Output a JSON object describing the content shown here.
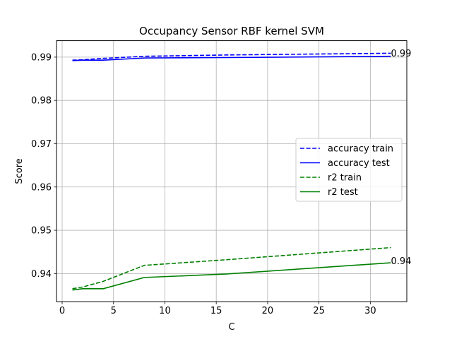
{
  "chart_data": {
    "type": "line",
    "title": "Occupancy Sensor RBF kernel SVM",
    "xlabel": "C",
    "ylabel": "Score",
    "xlim": [
      -0.55,
      33.55
    ],
    "ylim": [
      0.9335,
      0.9938
    ],
    "xticks": [
      0,
      5,
      10,
      15,
      20,
      25,
      30
    ],
    "yticks": [
      0.94,
      0.95,
      0.96,
      0.97,
      0.98,
      0.99
    ],
    "ytick_labels": [
      "0.94",
      "0.95",
      "0.96",
      "0.97",
      "0.98",
      "0.99"
    ],
    "grid": true,
    "legend_position": "center-right",
    "x": [
      1,
      2,
      4,
      8,
      16,
      32
    ],
    "series": [
      {
        "name": "accuracy train",
        "color": "#0000ff",
        "style": "dashed",
        "values": [
          0.9893,
          0.9894,
          0.9897,
          0.9902,
          0.9905,
          0.9909
        ]
      },
      {
        "name": "accuracy test",
        "color": "#0000ff",
        "style": "solid",
        "values": [
          0.9892,
          0.9893,
          0.9893,
          0.9898,
          0.9899,
          0.9902
        ]
      },
      {
        "name": "r2 train",
        "color": "#008000",
        "style": "dashed",
        "values": [
          0.9365,
          0.9369,
          0.9382,
          0.9419,
          0.9432,
          0.946
        ]
      },
      {
        "name": "r2 test",
        "color": "#008000",
        "style": "solid",
        "values": [
          0.9362,
          0.9365,
          0.9365,
          0.9391,
          0.9399,
          0.9425
        ]
      }
    ],
    "annotations": [
      {
        "text": "0.99",
        "x": 32,
        "y": 0.9909
      },
      {
        "text": "0.94",
        "x": 32,
        "y": 0.9429
      }
    ]
  }
}
